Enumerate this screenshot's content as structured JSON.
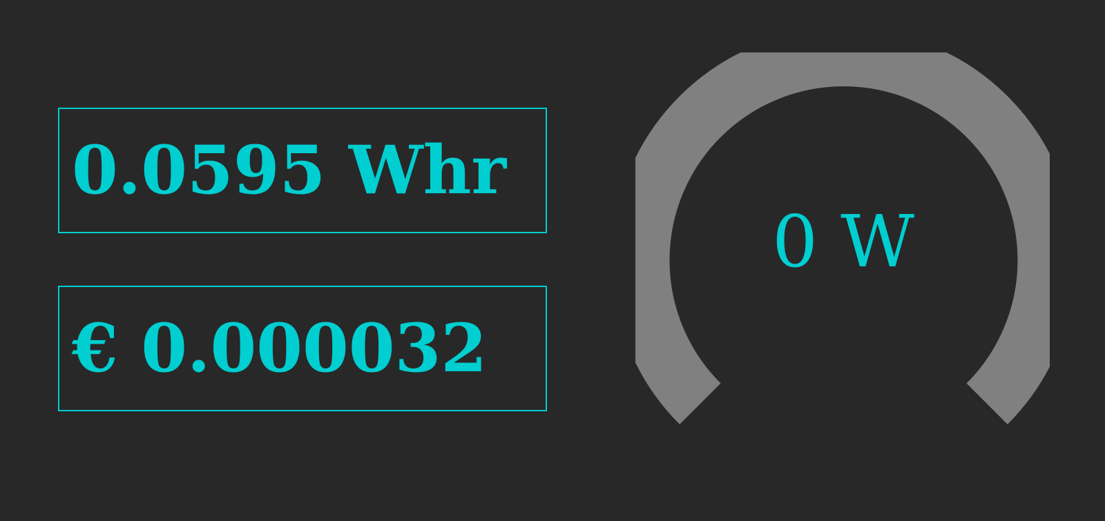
{
  "energy": {
    "value_text": "0.0595 Whr"
  },
  "cost": {
    "value_text": "€ 0.000032"
  },
  "power_gauge": {
    "value_text": "0 W",
    "value": 0,
    "fill_fraction": 0
  },
  "colors": {
    "background": "#282828",
    "accent": "#00CED1",
    "gauge_track": "#808080"
  }
}
